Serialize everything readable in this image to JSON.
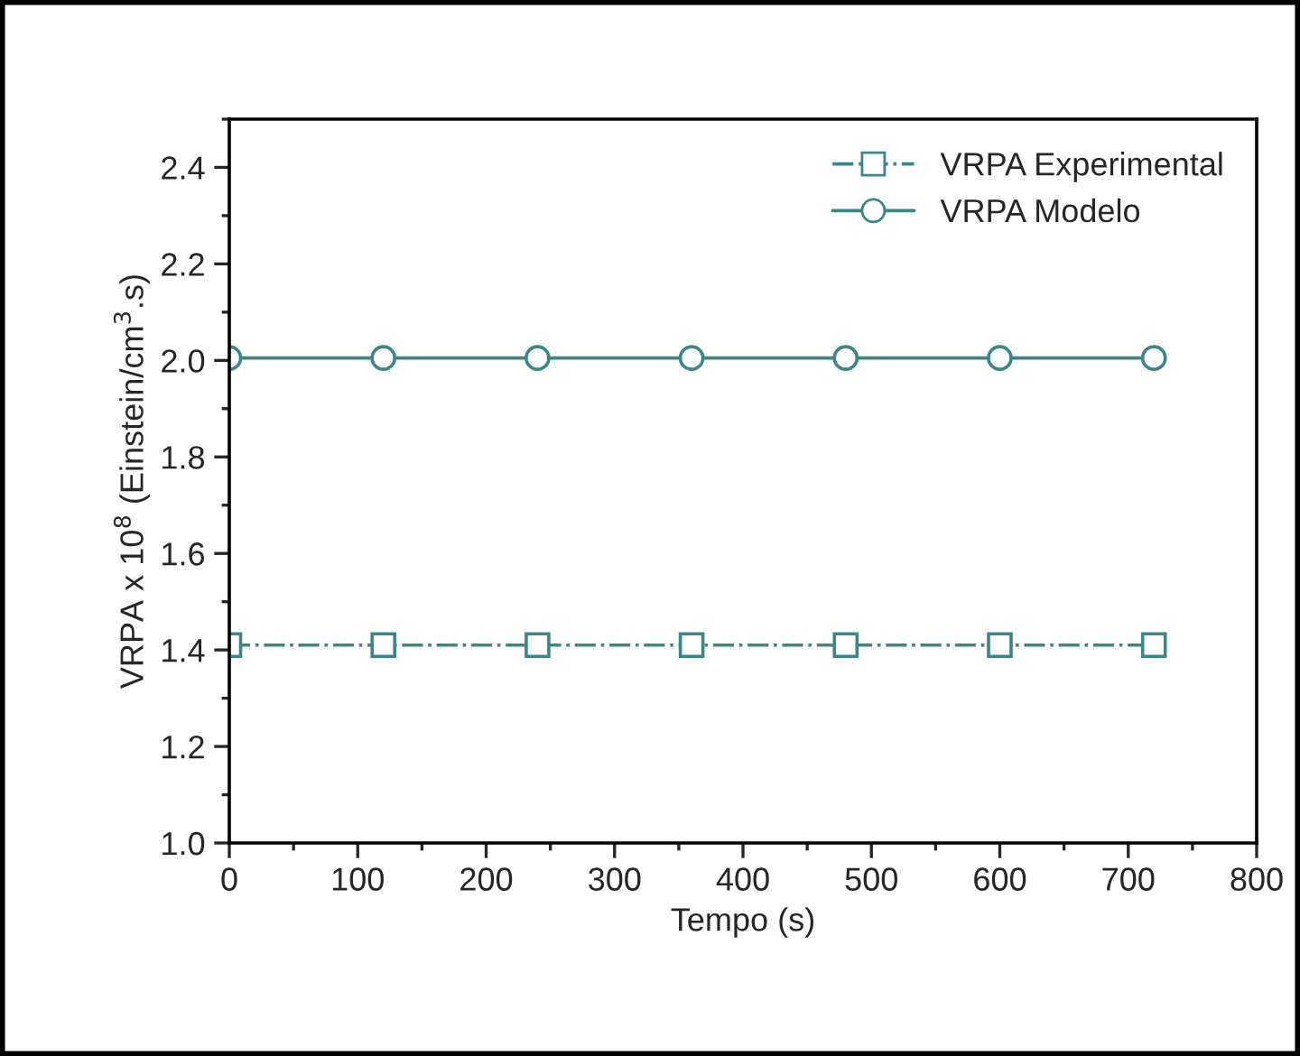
{
  "chart_data": {
    "type": "line",
    "xlabel": "Tempo (s)",
    "ylabel": "VRPA x 10$^{8}$ (Einstein/cm$^{3}$.s)",
    "x": [
      0,
      120,
      240,
      360,
      480,
      600,
      720
    ],
    "series": [
      {
        "name": "VRPA Experimental",
        "color": "#3b8686",
        "values": [
          1.41,
          1.41,
          1.41,
          1.41,
          1.41,
          1.41,
          1.41
        ],
        "marker": "square",
        "line_style": "dashdot"
      },
      {
        "name": "VRPA Modelo",
        "color": "#3b8686",
        "values": [
          2.005,
          2.005,
          2.005,
          2.005,
          2.005,
          2.005,
          2.005
        ],
        "marker": "circle",
        "line_style": "solid"
      }
    ],
    "xlim": [
      0,
      800
    ],
    "xticks": [
      0,
      100,
      200,
      300,
      400,
      500,
      600,
      700,
      800
    ],
    "ylim": [
      1.0,
      2.5
    ],
    "yticks": [
      {
        "value": 1.0,
        "label": "1.0"
      },
      {
        "value": 1.2,
        "label": "1.2"
      },
      {
        "value": 1.4,
        "label": "1.4"
      },
      {
        "value": 1.6,
        "label": "1.6"
      },
      {
        "value": 1.8,
        "label": "1.8"
      },
      {
        "value": 2.0,
        "label": "2.0"
      },
      {
        "value": 2.2,
        "label": "2.2"
      },
      {
        "value": 2.4,
        "label": "2.4"
      }
    ],
    "grid": false,
    "legend": "top right"
  }
}
